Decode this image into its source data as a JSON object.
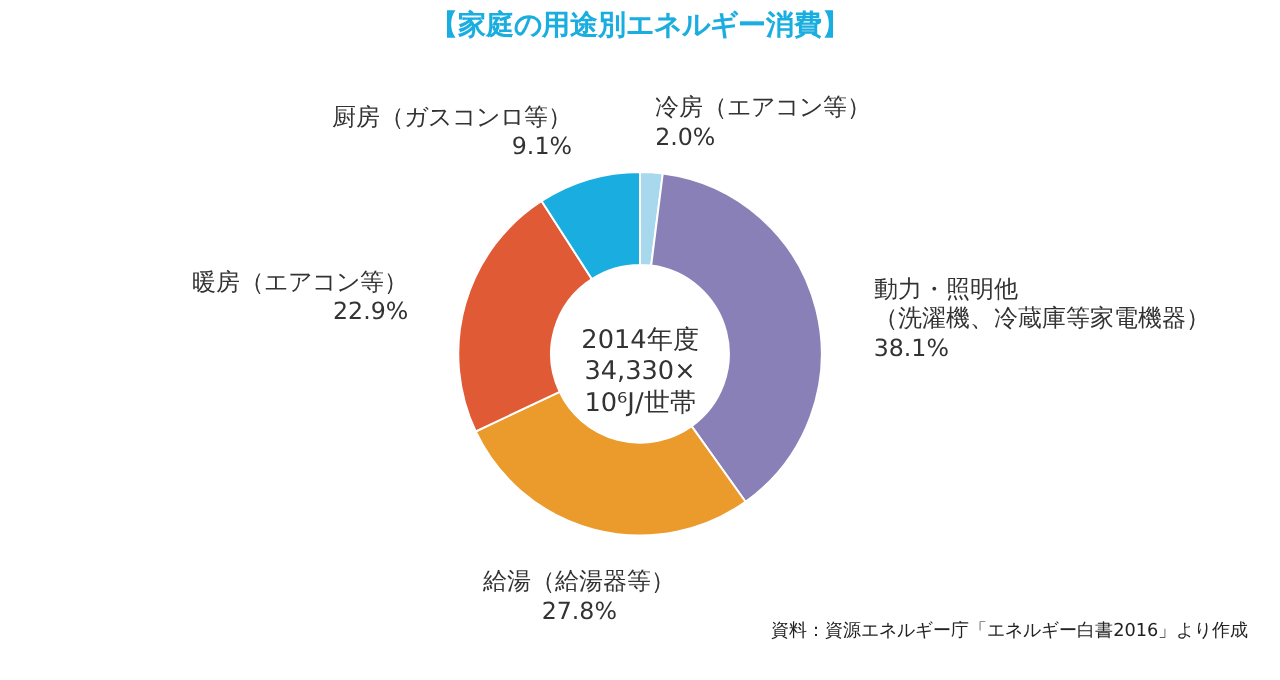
{
  "chart_data": {
    "type": "donut",
    "title": "【家庭の用途別エネルギー消費】",
    "categories": [
      "冷房（エアコン等）",
      "動力・照明他（洗濯機、冷蔵庫等家電機器）",
      "給湯（給湯器等）",
      "暖房（エアコン等）",
      "厨房（ガスコンロ等）"
    ],
    "values": [
      2.0,
      38.1,
      27.8,
      22.9,
      9.1
    ],
    "colors": [
      "#a8d8ee",
      "#8a80b8",
      "#eb9a2c",
      "#e05a35",
      "#1aaee0"
    ],
    "value_labels": [
      "2.0%",
      "38.1%",
      "27.8%",
      "22.9%",
      "9.1%"
    ],
    "legend": false,
    "annotations": [
      "2014年度\n34,330×\n10⁶J/世帯",
      "資料：資源エネルギー庁「エネルギー白書2016」より作成"
    ]
  }
}
